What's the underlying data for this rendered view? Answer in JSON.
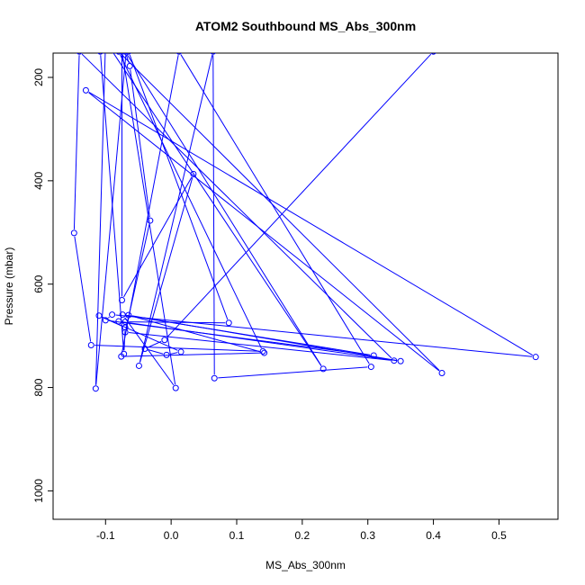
{
  "chart_data": {
    "type": "line",
    "title": "ATOM2 Southbound MS_Abs_300nm",
    "xlabel": "MS_Abs_300nm",
    "ylabel": "Pressure (mbar)",
    "xlim": [
      -0.18,
      0.59
    ],
    "ylim": [
      1055,
      153
    ],
    "y_reversed": true,
    "x_ticks": [
      -0.1,
      0.0,
      0.1,
      0.2,
      0.3,
      0.4,
      0.5
    ],
    "x_tick_labels": [
      "-0.1",
      "0.0",
      "0.1",
      "0.2",
      "0.3",
      "0.4",
      "0.5"
    ],
    "y_ticks": [
      200,
      400,
      600,
      800,
      1000
    ],
    "y_tick_labels": [
      "200",
      "400",
      "600",
      "800",
      "1000"
    ],
    "grid": false,
    "legend": "none",
    "series": [
      {
        "color": "#0000ff",
        "marker": "open-circle",
        "points": [
          {
            "x": -0.065,
            "y": 100
          },
          {
            "x": -0.115,
            "y": 802
          },
          {
            "x": -0.1,
            "y": 130
          },
          {
            "x": 0.232,
            "y": 764
          },
          {
            "x": -0.07,
            "y": 150
          },
          {
            "x": -0.063,
            "y": 178
          },
          {
            "x": -0.032,
            "y": 477
          },
          {
            "x": -0.07,
            "y": 693
          },
          {
            "x": 0.34,
            "y": 748
          },
          {
            "x": -0.14,
            "y": 150
          },
          {
            "x": -0.148,
            "y": 501
          },
          {
            "x": -0.122,
            "y": 718
          },
          {
            "x": 0.14,
            "y": 730
          },
          {
            "x": -0.08,
            "y": 150
          },
          {
            "x": 0.413,
            "y": 772
          },
          {
            "x": -0.13,
            "y": 225
          },
          {
            "x": 0.556,
            "y": 741
          },
          {
            "x": -0.09,
            "y": 659
          },
          {
            "x": -0.1,
            "y": 670
          },
          {
            "x": 0.309,
            "y": 738
          },
          {
            "x": -0.074,
            "y": 659
          },
          {
            "x": 0.007,
            "y": 801
          },
          {
            "x": -0.075,
            "y": 150
          },
          {
            "x": -0.075,
            "y": 631
          },
          {
            "x": 0.034,
            "y": 387
          },
          {
            "x": -0.049,
            "y": 758
          },
          {
            "x": 0.064,
            "y": 150
          },
          {
            "x": 0.066,
            "y": 782
          },
          {
            "x": 0.305,
            "y": 760
          },
          {
            "x": 0.012,
            "y": 150
          },
          {
            "x": -0.076,
            "y": 740
          },
          {
            "x": 0.142,
            "y": 733
          },
          {
            "x": -0.065,
            "y": 660
          },
          {
            "x": 0.35,
            "y": 749
          },
          {
            "x": -0.08,
            "y": 672
          },
          {
            "x": -0.07,
            "y": 673
          },
          {
            "x": 0.088,
            "y": 675
          },
          {
            "x": -0.065,
            "y": 150
          },
          {
            "x": 0.4,
            "y": 150
          },
          {
            "x": -0.01,
            "y": 708
          },
          {
            "x": -0.04,
            "y": 725
          },
          {
            "x": -0.007,
            "y": 737
          },
          {
            "x": 0.015,
            "y": 731
          },
          {
            "x": -0.11,
            "y": 661
          },
          {
            "x": -0.07,
            "y": 684
          },
          {
            "x": -0.072,
            "y": 735
          },
          {
            "x": -0.108,
            "y": 150
          }
        ]
      }
    ]
  }
}
